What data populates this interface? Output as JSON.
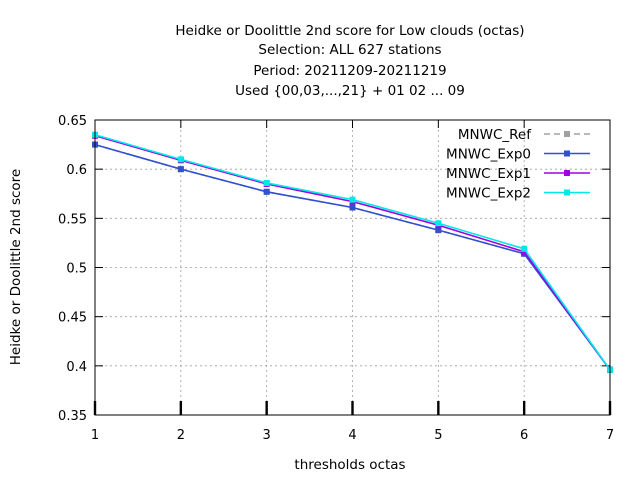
{
  "chart_data": {
    "type": "line",
    "title_lines": [
      "Heidke or Doolittle 2nd score  for Low clouds (octas)",
      "Selection: ALL    627 stations",
      "Period: 20211209-20211219",
      "Used {00,03,...,21} + 01 02 ... 09"
    ],
    "xlabel": "thresholds octas",
    "ylabel": "Heidke or Doolittle 2nd score",
    "xlim": [
      1,
      7
    ],
    "ylim": [
      0.35,
      0.65
    ],
    "xticks": [
      "1",
      "2",
      "3",
      "4",
      "5",
      "6",
      "7"
    ],
    "yticks": [
      "0.35",
      "0.4",
      "0.45",
      "0.5",
      "0.55",
      "0.6",
      "0.65"
    ],
    "grid": true,
    "legend_position": "top-right",
    "x": [
      1,
      2,
      3,
      4,
      5,
      6,
      7
    ],
    "series": [
      {
        "name": "MNWC_Ref",
        "color": "#a0a0a0",
        "dashed": true,
        "values": [
          0.625,
          0.6,
          0.577,
          0.561,
          0.538,
          0.514,
          0.396
        ]
      },
      {
        "name": "MNWC_Exp0",
        "color": "#3050d0",
        "dashed": false,
        "values": [
          0.625,
          0.6,
          0.577,
          0.561,
          0.538,
          0.514,
          0.396
        ]
      },
      {
        "name": "MNWC_Exp1",
        "color": "#a000e0",
        "dashed": false,
        "values": [
          0.634,
          0.609,
          0.585,
          0.567,
          0.543,
          0.516,
          0.396
        ]
      },
      {
        "name": "MNWC_Exp2",
        "color": "#00e8e8",
        "dashed": false,
        "values": [
          0.635,
          0.61,
          0.586,
          0.569,
          0.545,
          0.519,
          0.396
        ]
      }
    ]
  }
}
